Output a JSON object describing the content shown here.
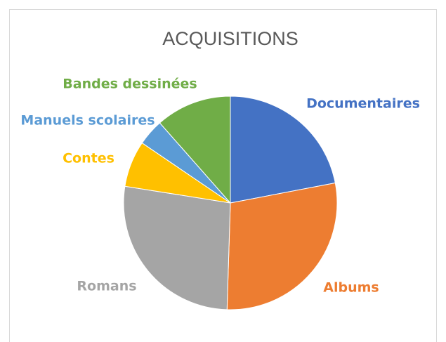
{
  "chart_data": {
    "type": "pie",
    "title": "ACQUISITIONS",
    "categories": [
      "Documentaires",
      "Albums",
      "Romans",
      "Contes",
      "Manuels scolaires",
      "Bandes dessinées"
    ],
    "values": [
      22,
      28.5,
      27,
      7,
      4,
      11.5
    ],
    "colors": [
      "#4472c4",
      "#ed7d31",
      "#a5a5a5",
      "#ffc000",
      "#5b9bd5",
      "#70ad47"
    ]
  }
}
